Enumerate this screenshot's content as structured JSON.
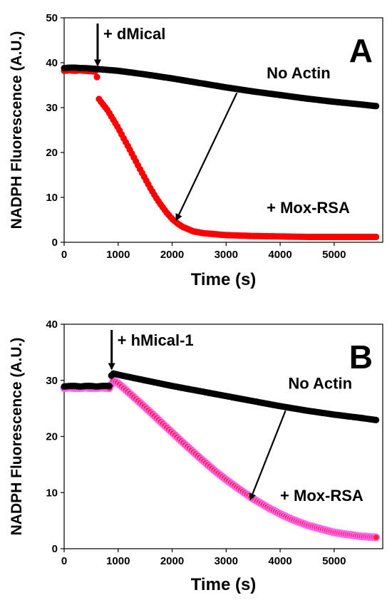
{
  "chart_data": [
    {
      "type": "scatter",
      "panel_label": "A",
      "xlabel": "Time (s)",
      "ylabel": "NADPH Fluorescence (A.U.)",
      "xlim": [
        0,
        5900
      ],
      "ylim": [
        0,
        50
      ],
      "xticks": [
        0,
        1000,
        2000,
        3000,
        4000,
        5000
      ],
      "yticks": [
        0,
        10,
        20,
        30,
        40,
        50
      ],
      "grid": false,
      "annotations": {
        "addition": "+ dMical",
        "addition_x": 620,
        "addition_y": 38.5
      },
      "arrow": {
        "from": [
          3200,
          33.3
        ],
        "to": [
          2080,
          5
        ]
      },
      "series": [
        {
          "name": "No Actin",
          "color": "#000000",
          "label_pos": [
            3750,
            36.5
          ],
          "x": [
            0,
            100,
            200,
            300,
            400,
            500,
            600,
            1000,
            1500,
            2000,
            2500,
            3000,
            3500,
            4000,
            4500,
            5000,
            5500,
            5800
          ],
          "y": [
            38.8,
            38.9,
            38.9,
            38.8,
            38.8,
            38.7,
            38.6,
            38.2,
            37.4,
            36.5,
            35.5,
            34.5,
            33.6,
            32.8,
            32.0,
            31.3,
            30.7,
            30.3
          ]
        },
        {
          "name": "+ Mox-RSA",
          "color": "#ff0000",
          "label_pos": [
            3750,
            6.5
          ],
          "x": [
            0,
            100,
            200,
            300,
            400,
            500,
            600,
            640,
            700,
            800,
            900,
            1000,
            1100,
            1200,
            1300,
            1400,
            1500,
            1600,
            1700,
            1800,
            1900,
            2000,
            2100,
            2200,
            2400,
            2600,
            2800,
            3000,
            3500,
            4000,
            4500,
            5000,
            5500,
            5800
          ],
          "y": [
            38.2,
            38.3,
            38.2,
            38.3,
            38.2,
            38.1,
            38.0,
            32.0,
            31.0,
            29.5,
            27.5,
            25.5,
            23.2,
            21.0,
            18.7,
            16.4,
            14.2,
            12.0,
            10.0,
            8.2,
            6.6,
            5.2,
            4.2,
            3.4,
            2.4,
            2.0,
            1.8,
            1.6,
            1.4,
            1.3,
            1.2,
            1.2,
            1.2,
            1.2
          ]
        }
      ]
    },
    {
      "type": "scatter",
      "panel_label": "B",
      "xlabel": "Time (s)",
      "ylabel": "NADPH Fluorescence (A.U.)",
      "xlim": [
        0,
        5900
      ],
      "ylim": [
        0,
        40
      ],
      "xticks": [
        0,
        1000,
        2000,
        3000,
        4000,
        5000
      ],
      "yticks": [
        0,
        10,
        20,
        30,
        40
      ],
      "grid": false,
      "annotations": {
        "addition": "+ hMical-1",
        "addition_x": 880,
        "addition_y": 31.3
      },
      "arrow": {
        "from": [
          4100,
          24.6
        ],
        "to": [
          3450,
          8.8
        ]
      },
      "series": [
        {
          "name": "No Actin",
          "color": "#000000",
          "label_pos": [
            4150,
            28.5
          ],
          "x": [
            0,
            100,
            200,
            300,
            400,
            500,
            600,
            700,
            800,
            850,
            880,
            1000,
            1500,
            2000,
            2500,
            3000,
            3500,
            4000,
            4500,
            5000,
            5500,
            5800
          ],
          "y": [
            28.9,
            29.0,
            29.0,
            28.9,
            29.0,
            29.0,
            28.9,
            29.0,
            29.0,
            29.0,
            31.3,
            31.0,
            30.0,
            29.0,
            28.1,
            27.2,
            26.3,
            25.4,
            24.6,
            23.9,
            23.3,
            22.9
          ]
        },
        {
          "name": "+ Mox-RSA",
          "color": "#ff2020",
          "edge": "#ff66ff",
          "label_pos": [
            4000,
            8.5
          ],
          "x": [
            0,
            100,
            200,
            300,
            400,
            500,
            600,
            700,
            800,
            850,
            900,
            1000,
            1200,
            1500,
            1800,
            2000,
            2200,
            2500,
            2800,
            3000,
            3200,
            3500,
            3800,
            4000,
            4200,
            4500,
            4800,
            5000,
            5200,
            5500,
            5800
          ],
          "y": [
            28.6,
            28.7,
            28.6,
            28.6,
            28.7,
            28.6,
            28.6,
            28.7,
            28.6,
            28.6,
            30.0,
            29.5,
            27.8,
            25.2,
            22.5,
            20.7,
            18.9,
            16.3,
            13.8,
            12.3,
            10.9,
            8.9,
            7.2,
            6.2,
            5.3,
            4.2,
            3.4,
            2.9,
            2.6,
            2.2,
            2.0
          ]
        }
      ]
    }
  ]
}
